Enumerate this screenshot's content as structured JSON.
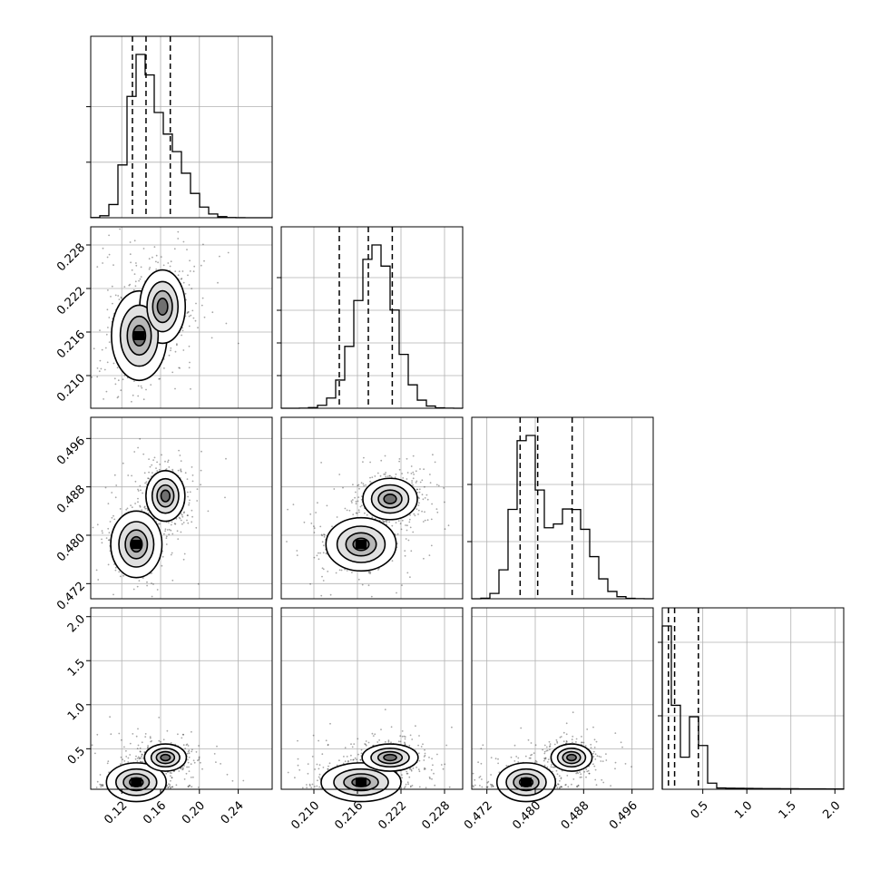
{
  "chart_data": {
    "type": "corner",
    "title": "",
    "params": [
      {
        "range": [
          0.088,
          0.275
        ],
        "ticks": [
          0.12,
          0.16,
          0.2,
          0.24
        ],
        "tick_labels": [
          "0.12",
          "0.16",
          "0.20",
          "0.24"
        ],
        "median": 0.145,
        "quantiles": [
          0.131,
          0.145,
          0.17
        ],
        "peaks": [
          [
            0.138,
            1.0
          ],
          [
            0.165,
            0.6
          ]
        ],
        "widths": [
          0.012,
          0.02
        ]
      },
      {
        "range": [
          0.2055,
          0.2305
        ],
        "ticks": [
          0.21,
          0.216,
          0.222,
          0.228
        ],
        "tick_labels": [
          "0.210",
          "0.216",
          "0.222",
          "0.228"
        ],
        "median": 0.2175,
        "quantiles": [
          0.2135,
          0.2175,
          0.2208
        ],
        "peaks": [
          [
            0.2185,
            1.0
          ]
        ],
        "widths": [
          0.0026
        ]
      },
      {
        "range": [
          0.4695,
          0.4995
        ],
        "ticks": [
          0.472,
          0.48,
          0.488,
          0.496
        ],
        "tick_labels": [
          "0.472",
          "0.480",
          "0.488",
          "0.496"
        ],
        "median": 0.4804,
        "quantiles": [
          0.4775,
          0.4804,
          0.4861
        ],
        "peaks": [
          [
            0.4785,
            1.0
          ],
          [
            0.486,
            0.55
          ]
        ],
        "widths": [
          0.002,
          0.003
        ]
      },
      {
        "range": [
          0.04,
          2.1
        ],
        "ticks": [
          0.5,
          1.0,
          1.5,
          2.0
        ],
        "tick_labels": [
          "0.5",
          "1.0",
          "1.5",
          "2.0"
        ],
        "median": 0.18,
        "quantiles": [
          0.11,
          0.18,
          0.45
        ],
        "peaks": [
          [
            0.1,
            1.0
          ],
          [
            0.42,
            0.45
          ]
        ],
        "widths": [
          0.08,
          0.08
        ]
      }
    ],
    "diag_hist_ticks": [
      [
        0.34,
        0.68
      ],
      [
        0.2,
        0.4,
        0.6,
        0.8
      ],
      [
        0.35,
        0.7
      ],
      [
        0.45,
        0.9
      ]
    ],
    "pairs": [
      {
        "row": 1,
        "col": 0,
        "modes": [
          [
            0.138,
            0.2155,
            1.0
          ],
          [
            0.162,
            0.2195,
            0.9
          ]
        ],
        "spread": [
          0.013,
          0.0028
        ]
      },
      {
        "row": 2,
        "col": 0,
        "modes": [
          [
            0.135,
            0.4785,
            1.0
          ],
          [
            0.165,
            0.4865,
            0.7
          ]
        ],
        "spread": [
          0.012,
          0.0025
        ]
      },
      {
        "row": 2,
        "col": 1,
        "modes": [
          [
            0.2165,
            0.4785,
            1.0
          ],
          [
            0.2205,
            0.486,
            0.75
          ]
        ],
        "spread": [
          0.0022,
          0.002
        ]
      },
      {
        "row": 3,
        "col": 0,
        "modes": [
          [
            0.135,
            0.12,
            1.0
          ],
          [
            0.165,
            0.4,
            0.5
          ]
        ],
        "spread": [
          0.014,
          0.1
        ]
      },
      {
        "row": 3,
        "col": 1,
        "modes": [
          [
            0.2165,
            0.12,
            1.0
          ],
          [
            0.2205,
            0.4,
            0.5
          ]
        ],
        "spread": [
          0.0025,
          0.1
        ]
      },
      {
        "row": 3,
        "col": 2,
        "modes": [
          [
            0.4785,
            0.12,
            1.0
          ],
          [
            0.486,
            0.4,
            0.5
          ]
        ],
        "spread": [
          0.0022,
          0.1
        ]
      }
    ],
    "grid": true
  }
}
